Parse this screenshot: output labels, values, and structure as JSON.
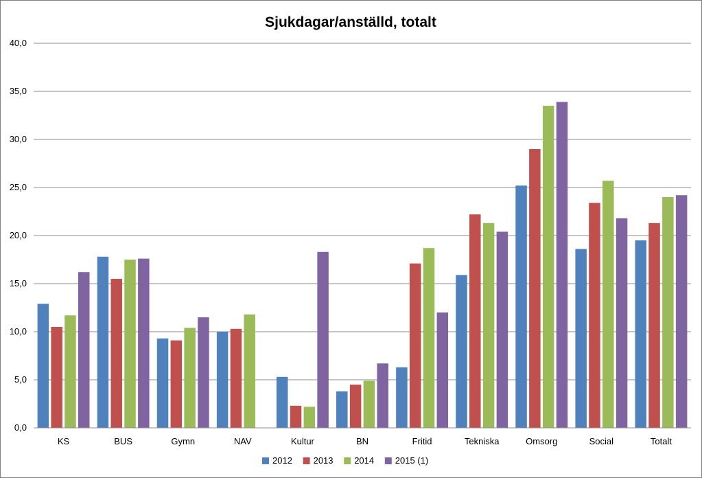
{
  "chart_data": {
    "type": "bar",
    "title": "Sjukdagar/anställd, totalt",
    "xlabel": "",
    "ylabel": "",
    "ylim": [
      0,
      40
    ],
    "ytick_step": 5,
    "ytick_labels": [
      "0,0",
      "5,0",
      "10,0",
      "15,0",
      "20,0",
      "25,0",
      "30,0",
      "35,0",
      "40,0"
    ],
    "grid": true,
    "legend_position": "bottom",
    "categories": [
      "KS",
      "BUS",
      "Gymn",
      "NAV",
      "Kultur",
      "BN",
      "Fritid",
      "Tekniska",
      "Omsorg",
      "Social",
      "Totalt"
    ],
    "series": [
      {
        "name": "2012",
        "color": "#4f81bd",
        "values": [
          12.9,
          17.8,
          9.3,
          10.0,
          5.3,
          3.8,
          6.3,
          15.9,
          25.2,
          18.6,
          19.5
        ]
      },
      {
        "name": "2013",
        "color": "#c0504d",
        "values": [
          10.5,
          15.5,
          9.1,
          10.3,
          2.3,
          4.5,
          17.1,
          22.2,
          29.0,
          23.4,
          21.3
        ]
      },
      {
        "name": "2014",
        "color": "#9bbb59",
        "values": [
          11.7,
          17.5,
          10.4,
          11.8,
          2.2,
          4.9,
          18.7,
          21.3,
          33.5,
          25.7,
          24.0
        ]
      },
      {
        "name": "2015 (1)",
        "color": "#8064a2",
        "values": [
          16.2,
          17.6,
          11.5,
          null,
          18.3,
          6.7,
          12.0,
          20.4,
          33.9,
          21.8,
          24.2
        ]
      }
    ]
  }
}
